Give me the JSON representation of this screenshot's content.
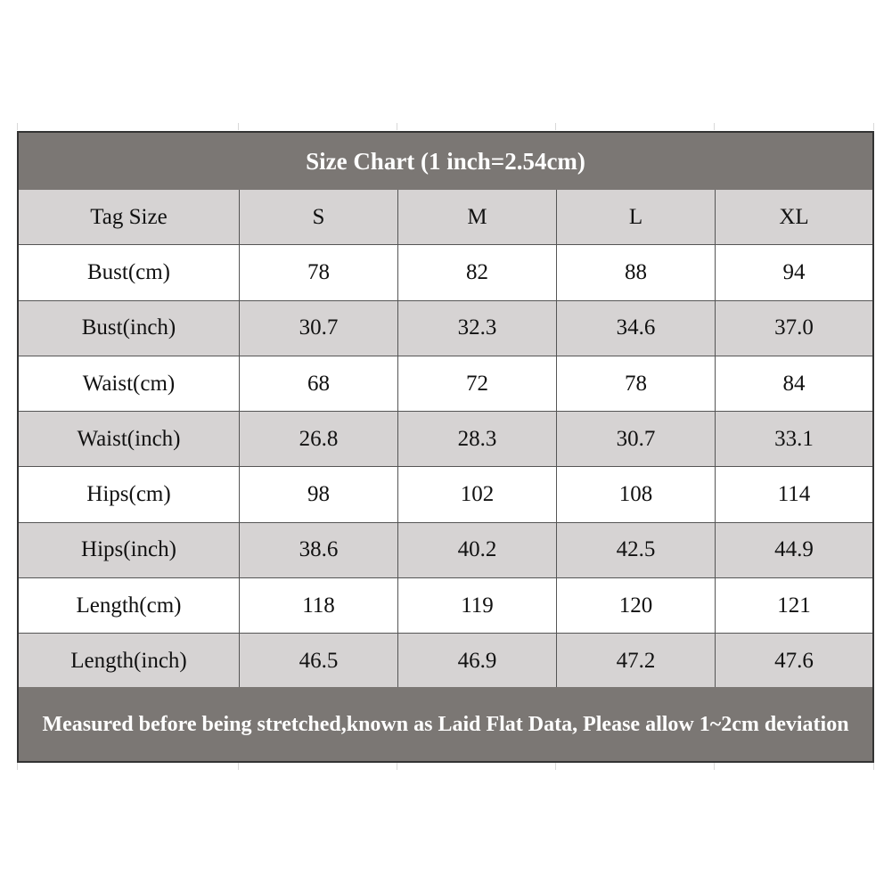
{
  "title": "Size Chart (1 inch=2.54cm)",
  "header": [
    "Tag Size",
    "S",
    "M",
    "L",
    "XL"
  ],
  "rows": [
    [
      "Bust(cm)",
      "78",
      "82",
      "88",
      "94"
    ],
    [
      "Bust(inch)",
      "30.7",
      "32.3",
      "34.6",
      "37.0"
    ],
    [
      "Waist(cm)",
      "68",
      "72",
      "78",
      "84"
    ],
    [
      "Waist(inch)",
      "26.8",
      "28.3",
      "30.7",
      "33.1"
    ],
    [
      "Hips(cm)",
      "98",
      "102",
      "108",
      "114"
    ],
    [
      "Hips(inch)",
      "38.6",
      "40.2",
      "42.5",
      "44.9"
    ],
    [
      "Length(cm)",
      "118",
      "119",
      "120",
      "121"
    ],
    [
      "Length(inch)",
      "46.5",
      "46.9",
      "47.2",
      "47.6"
    ]
  ],
  "footer": "Measured before being stretched,known as Laid Flat Data, Please allow 1~2cm deviation",
  "colors": {
    "title_bg": "#7b7774",
    "shade_bg": "#d6d3d3",
    "border": "#333333"
  }
}
